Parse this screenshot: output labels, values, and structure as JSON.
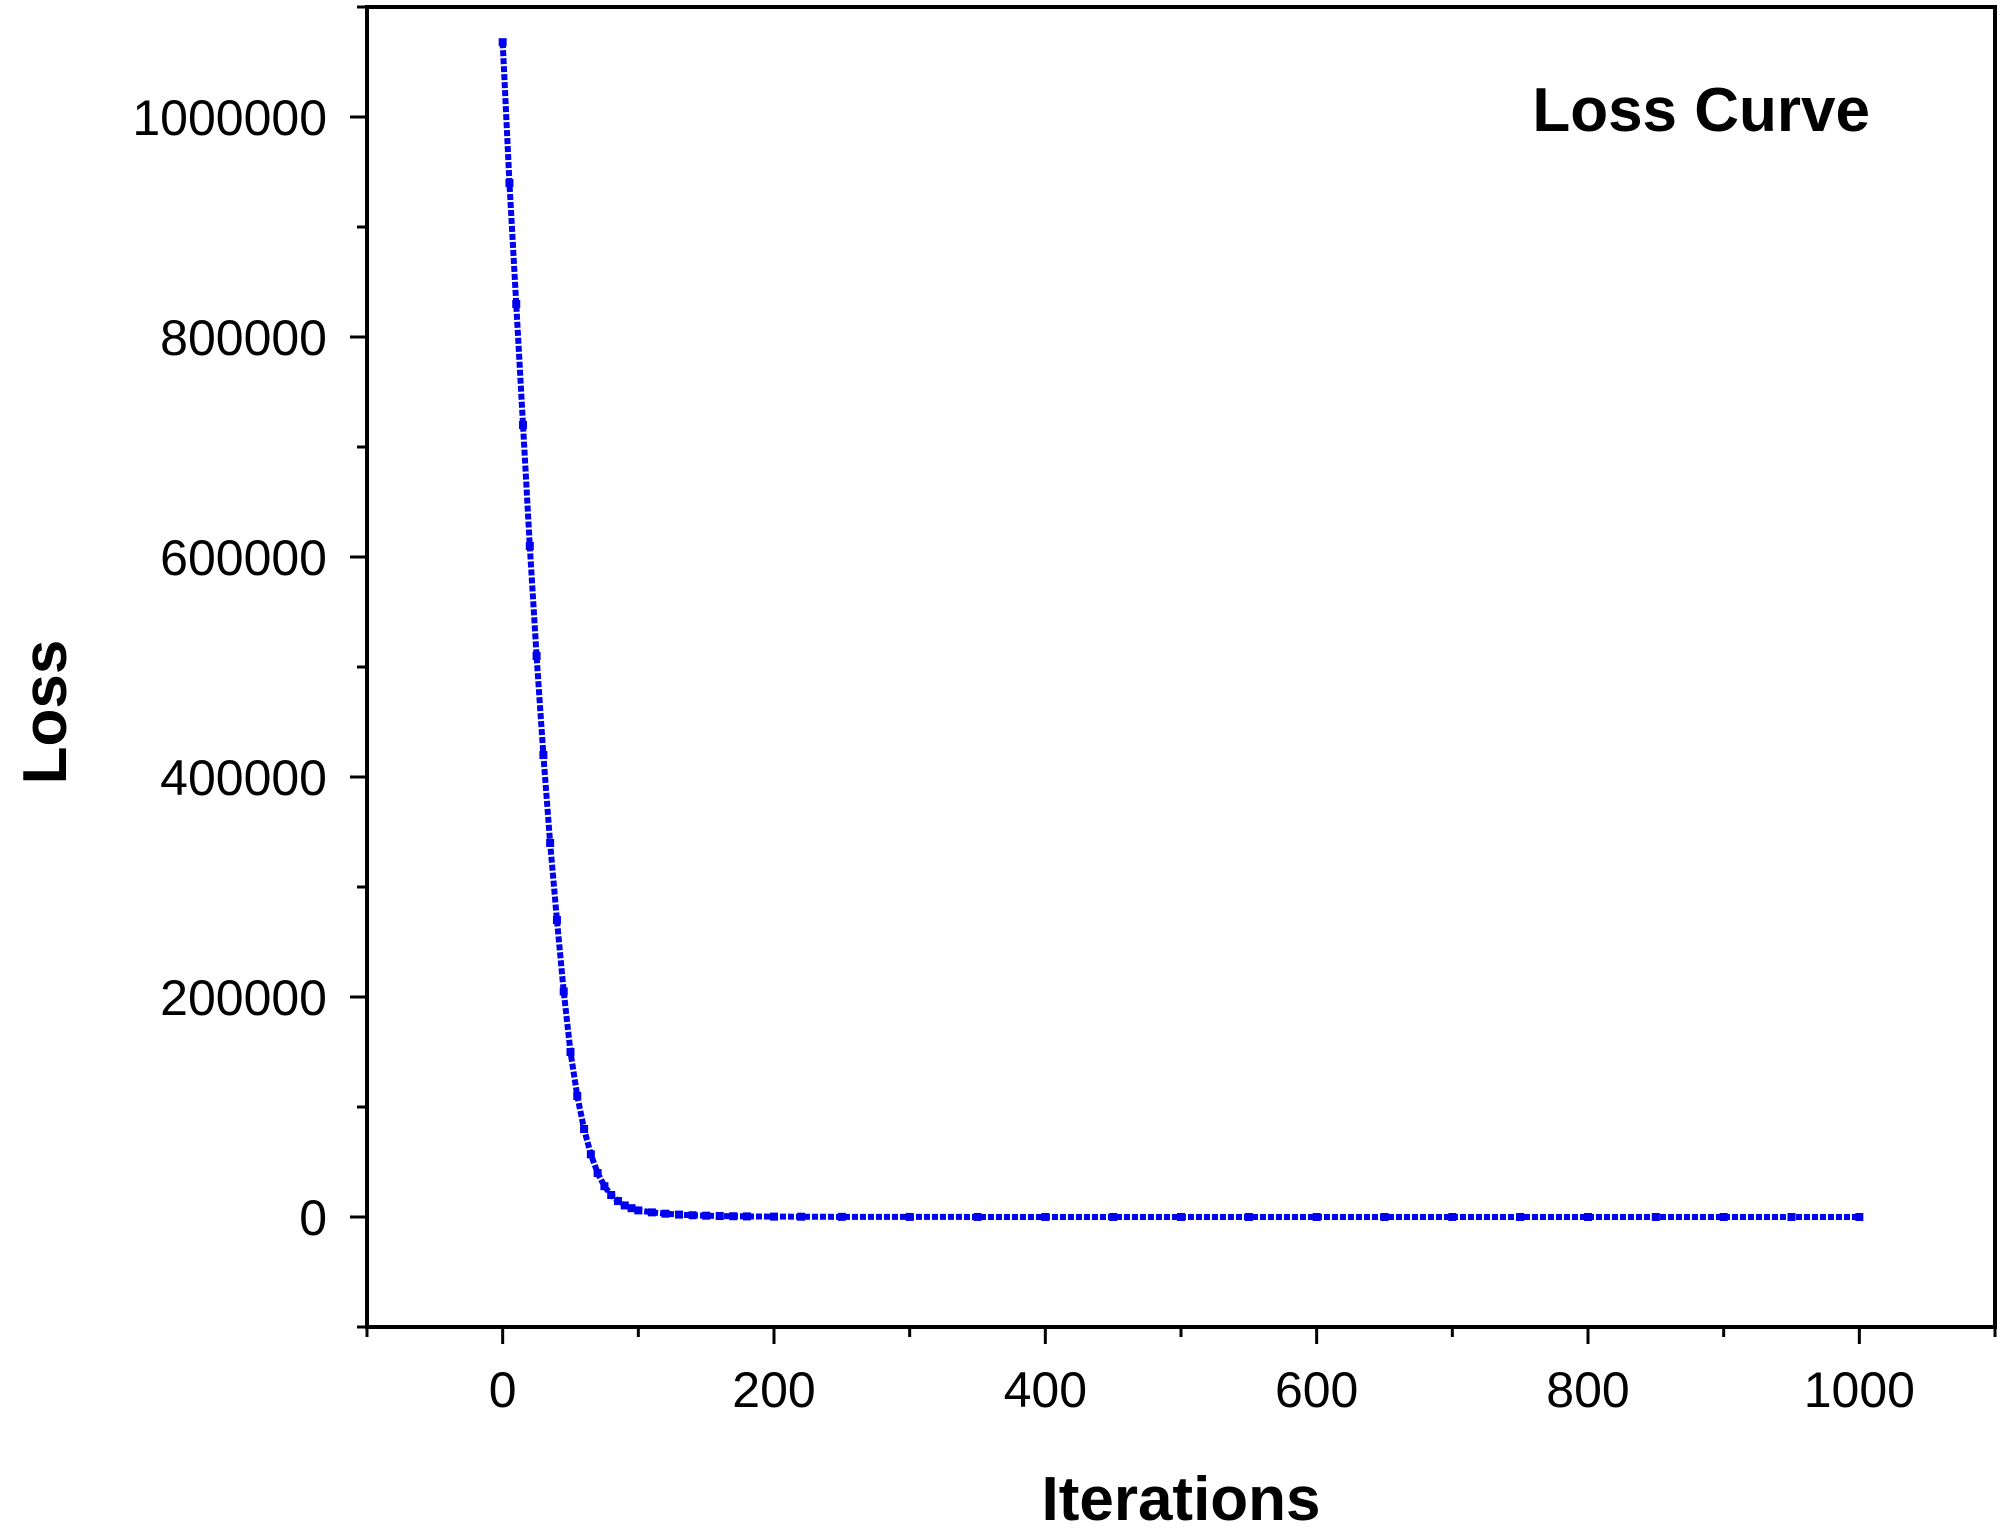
{
  "chart_data": {
    "type": "line",
    "title": "Loss Curve",
    "title_position": "top-right",
    "xlabel": "Iterations",
    "ylabel": "Loss",
    "xlim": [
      -100,
      1100
    ],
    "ylim": [
      -100000,
      1100000
    ],
    "x_ticks": [
      0,
      200,
      400,
      600,
      800,
      1000
    ],
    "x_tick_labels": [
      "0",
      "200",
      "400",
      "600",
      "800",
      "1000"
    ],
    "x_minor_ticks": [
      -100,
      100,
      300,
      500,
      700,
      900,
      1100
    ],
    "y_ticks": [
      0,
      200000,
      400000,
      600000,
      800000,
      1000000
    ],
    "y_tick_labels": [
      "0",
      "200000",
      "400000",
      "600000",
      "800000",
      "1000000"
    ],
    "y_minor_ticks": [
      -100000,
      100000,
      300000,
      500000,
      700000,
      900000,
      1100000
    ],
    "grid": false,
    "legend": "none",
    "series": [
      {
        "color": "#0000ee",
        "marker": "square",
        "x": [
          0,
          5,
          10,
          15,
          20,
          25,
          30,
          35,
          40,
          45,
          50,
          55,
          60,
          65,
          70,
          75,
          80,
          85,
          90,
          95,
          100,
          110,
          120,
          130,
          140,
          150,
          160,
          170,
          180,
          200,
          220,
          250,
          300,
          350,
          400,
          450,
          500,
          550,
          600,
          650,
          700,
          750,
          800,
          850,
          900,
          950,
          1000
        ],
        "y": [
          1068000,
          940000,
          830000,
          720000,
          610000,
          510000,
          420000,
          340000,
          270000,
          205000,
          150000,
          110000,
          80000,
          57000,
          40000,
          28000,
          20000,
          14500,
          10500,
          8000,
          6000,
          4200,
          3000,
          2200,
          1600,
          1200,
          900,
          700,
          550,
          350,
          250,
          150,
          80,
          50,
          30,
          20,
          15,
          10,
          8,
          6,
          5,
          4,
          3,
          3,
          2,
          2,
          2
        ]
      }
    ]
  }
}
